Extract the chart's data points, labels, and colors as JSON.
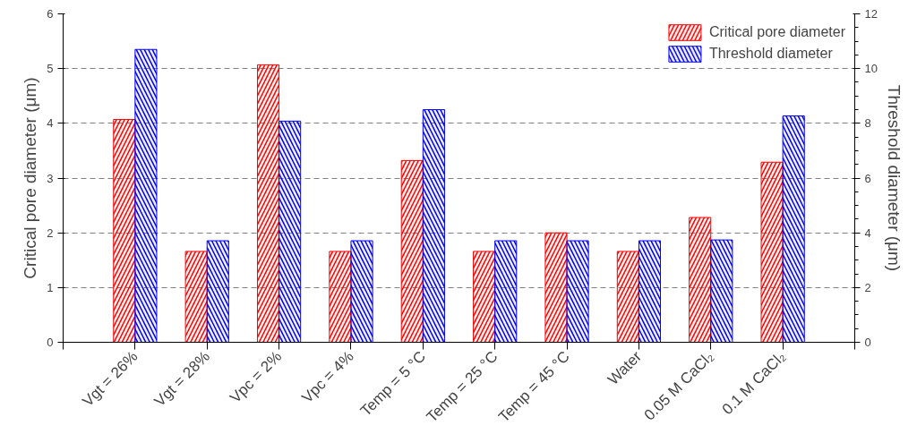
{
  "chart_data": {
    "type": "bar",
    "categories": [
      "Vgt = 26%",
      "Vgt = 28%",
      "Vpc = 2%",
      "Vpc = 4%",
      "Temp = 5 °C",
      "Temp = 25 °C",
      "Temp = 45 °C",
      "Water",
      "0.05 M CaCl₂",
      "0.1 M CaCl₂"
    ],
    "series": [
      {
        "name": "Critical pore diameter",
        "color": "#ff0000",
        "values": [
          4.07,
          1.66,
          5.07,
          1.66,
          3.32,
          1.66,
          2.0,
          1.66,
          2.28,
          3.29
        ]
      },
      {
        "name": "Threshold diameter",
        "color": "#0000ff",
        "axis": "y2",
        "values": [
          10.7,
          3.71,
          8.08,
          3.71,
          8.5,
          3.71,
          3.71,
          3.71,
          3.74,
          8.27
        ]
      }
    ],
    "ylabel": "Critical pore diameter (μm)",
    "y2label": "Threshold diameter (μm)",
    "ylim": [
      0,
      6
    ],
    "yticks": [
      0,
      1,
      2,
      3,
      4,
      5,
      6
    ],
    "y2lim": [
      0,
      12
    ],
    "y2ticks": [
      0,
      2,
      4,
      6,
      8,
      10,
      12
    ],
    "grid": "y",
    "legend": "top right"
  }
}
